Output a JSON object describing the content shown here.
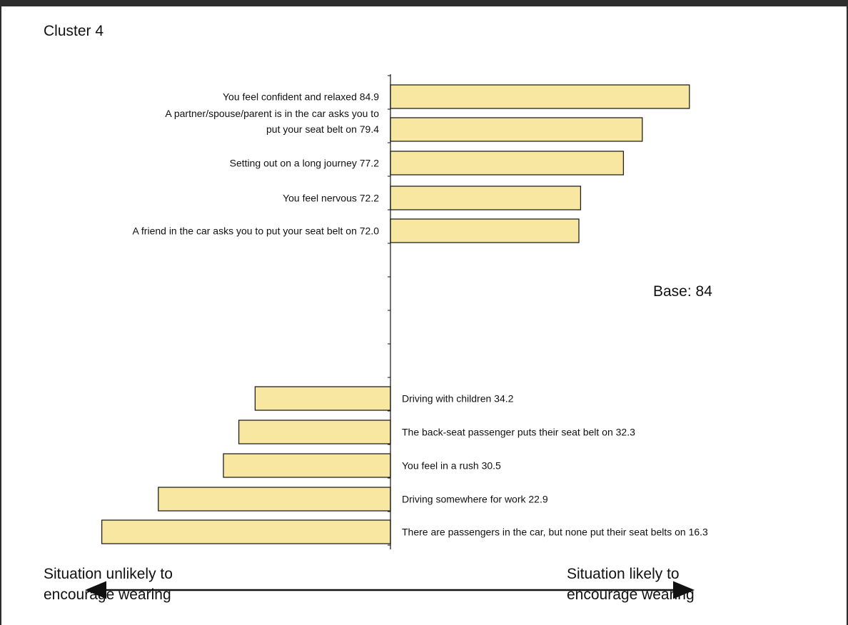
{
  "title": "Cluster 4",
  "base_label": "Base: 84",
  "captions": {
    "left_line1": "Situation unlikely to",
    "left_line2": "encourage wearing",
    "right_line1": "Situation likely to",
    "right_line2": "encourage wearing"
  },
  "colors": {
    "bar_fill": "#f8e7a0",
    "bar_stroke": "#222222",
    "frame": "#2d2d2d"
  },
  "chart_data": {
    "type": "bar",
    "orientation": "horizontal-diverging",
    "title": "Cluster 4",
    "annotation": "Base: 84",
    "items": [
      {
        "label_lines": [
          "You feel confident and relaxed 84.9"
        ],
        "value": 84.9,
        "side": "right"
      },
      {
        "label_lines": [
          "A partner/spouse/parent is in the car asks you to",
          "put your seat belt on 79.4"
        ],
        "value": 79.4,
        "side": "right"
      },
      {
        "label_lines": [
          "Setting out on a long journey 77.2"
        ],
        "value": 77.2,
        "side": "right"
      },
      {
        "label_lines": [
          "You feel nervous 72.2"
        ],
        "value": 72.2,
        "side": "right"
      },
      {
        "label_lines": [
          "A friend in the car asks you to put your seat belt on 72.0"
        ],
        "value": 72.0,
        "side": "right"
      },
      {
        "label_lines": [
          "Driving with children 34.2"
        ],
        "value": 34.2,
        "side": "left"
      },
      {
        "label_lines": [
          "The back-seat passenger puts their seat belt on 32.3"
        ],
        "value": 32.3,
        "side": "left"
      },
      {
        "label_lines": [
          "You feel in a rush 30.5"
        ],
        "value": 30.5,
        "side": "left"
      },
      {
        "label_lines": [
          "Driving somewhere for work 22.9"
        ],
        "value": 22.9,
        "side": "left"
      },
      {
        "label_lines": [
          "There are passengers in the car, but none put their seat belts on 16.3"
        ],
        "value": 16.3,
        "side": "left"
      }
    ],
    "scale_midpoint": 50,
    "xlim": [
      0,
      100
    ]
  }
}
